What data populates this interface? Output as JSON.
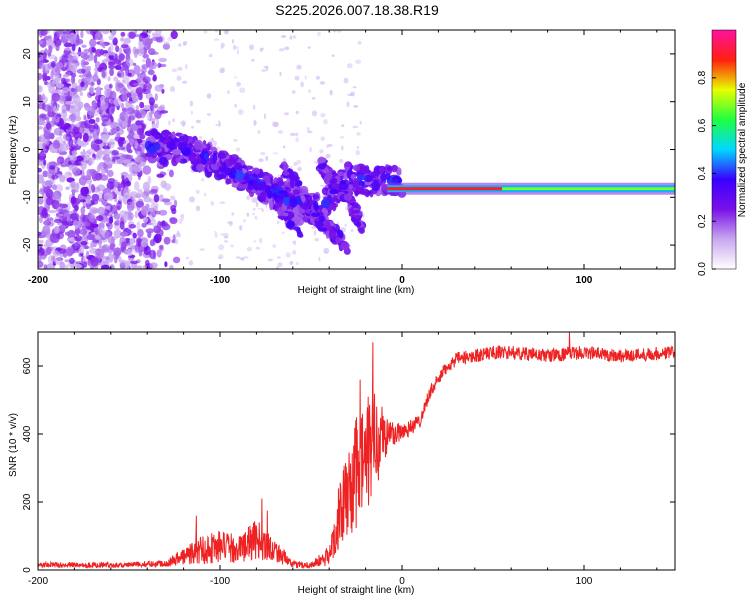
{
  "chart_data": [
    {
      "type": "heatmap",
      "title": "S225.2026.007.18.38.R19",
      "xlabel": "Height of straight line (km)",
      "ylabel": "Frequency (Hz)",
      "xlim": [
        -200,
        150
      ],
      "ylim": [
        -25,
        25
      ],
      "x_ticks": [
        -200,
        -100,
        0,
        100
      ],
      "x_tick_labels": [
        "-200",
        "-100",
        "0",
        "100"
      ],
      "y_ticks": [
        -20,
        -10,
        0,
        10,
        20
      ],
      "y_tick_labels": [
        "-20",
        "-10",
        "0",
        "10",
        "20"
      ],
      "colorbar": {
        "label": "Normalized spectral amplitude",
        "range": [
          0,
          1
        ],
        "ticks": [
          0.0,
          0.2,
          0.4,
          0.6,
          0.8
        ],
        "tick_labels": [
          "0.0",
          "0.2",
          "0.4",
          "0.6",
          "0.8"
        ],
        "colormap": [
          "#ffffff",
          "#c8a8f0",
          "#7a10e8",
          "#3a00ff",
          "#00d8ff",
          "#20ff40",
          "#e8ff00",
          "#ff2010",
          "#ff10a0"
        ]
      },
      "scatter_region": {
        "x_range": [
          -200,
          -130
        ],
        "y_range": [
          -25,
          25
        ],
        "level": 0.2
      },
      "echo_path": {
        "x": [
          -140,
          -120,
          -100,
          -80,
          -60,
          -45,
          -30,
          -15,
          -5,
          0
        ],
        "y": [
          1,
          0,
          -3,
          -7,
          -11,
          -13,
          -6,
          -7,
          -6.5,
          -7
        ]
      },
      "trail_segments": [
        {
          "x": [
            -100,
            -75,
            -55
          ],
          "y": [
            -2,
            -9,
            -17
          ]
        },
        {
          "x": [
            -65,
            -45,
            -30
          ],
          "y": [
            -4,
            -15,
            -20
          ]
        },
        {
          "x": [
            -45,
            -30,
            -22
          ],
          "y": [
            -3,
            -10,
            -16
          ]
        }
      ],
      "carrier_line": {
        "x_start": -8,
        "x_end": 150,
        "y": -8.2,
        "level": 0.9
      }
    },
    {
      "type": "line",
      "xlabel": "Height of straight line (km)",
      "ylabel": "SNR (10 * v/v)",
      "xlim": [
        -200,
        150
      ],
      "ylim": [
        0,
        700
      ],
      "x_ticks": [
        -200,
        -100,
        0,
        100
      ],
      "x_tick_labels": [
        "-200",
        "-100",
        "0",
        "100"
      ],
      "y_ticks": [
        0,
        200,
        400,
        600
      ],
      "y_tick_labels": [
        "0",
        "200",
        "400",
        "600"
      ],
      "line_color": "#ee2222",
      "series": [
        {
          "name": "SNR",
          "x": [
            -200,
            -150,
            -130,
            -120,
            -110,
            -100,
            -90,
            -80,
            -70,
            -60,
            -50,
            -40,
            -35,
            -30,
            -25,
            -20,
            -15,
            -10,
            -5,
            0,
            5,
            10,
            15,
            20,
            25,
            30,
            40,
            50,
            60,
            80,
            100,
            120,
            150
          ],
          "y": [
            15,
            15,
            20,
            40,
            60,
            70,
            60,
            90,
            60,
            15,
            15,
            40,
            150,
            220,
            280,
            330,
            380,
            390,
            400,
            410,
            420,
            440,
            520,
            560,
            600,
            620,
            630,
            640,
            640,
            630,
            640,
            630,
            640
          ],
          "noise": [
            8,
            8,
            10,
            25,
            45,
            50,
            40,
            60,
            35,
            10,
            10,
            30,
            90,
            130,
            170,
            180,
            150,
            80,
            40,
            30,
            25,
            20,
            20,
            20,
            20,
            20,
            20,
            20,
            20,
            20,
            20,
            20,
            20
          ],
          "spikes": [
            {
              "x": -113,
              "y": 160
            },
            {
              "x": -77,
              "y": 210
            },
            {
              "x": -74,
              "y": 175
            },
            {
              "x": -23,
              "y": 560
            },
            {
              "x": -16,
              "y": 670
            },
            {
              "x": -11,
              "y": 480
            },
            {
              "x": 92,
              "y": 700
            }
          ]
        }
      ]
    }
  ]
}
